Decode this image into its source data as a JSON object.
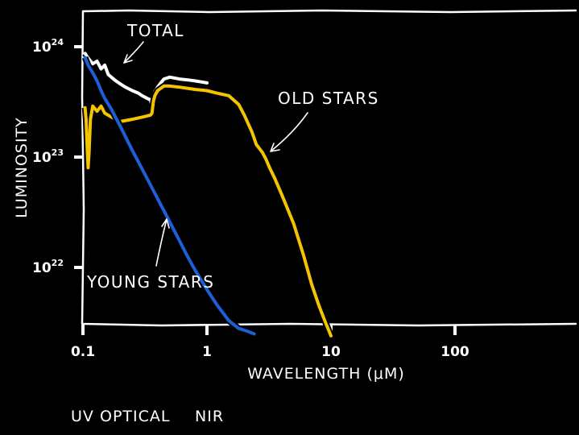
{
  "chart_data": {
    "type": "line",
    "xlabel": "WAVELENGTH (μM)",
    "ylabel": "LUMINOSITY",
    "xscale": "log",
    "yscale": "log",
    "xlim": [
      0.1,
      500
    ],
    "ylim": [
      2.4e+21,
      1.6e+24
    ],
    "xticks": [
      {
        "value": 0.1,
        "label": "0.1"
      },
      {
        "value": 1,
        "label": "1"
      },
      {
        "value": 10,
        "label": "10"
      },
      {
        "value": 100,
        "label": "100"
      }
    ],
    "yticks": [
      {
        "value": 1e+22,
        "base": "10",
        "exp": "22"
      },
      {
        "value": 1e+23,
        "base": "10",
        "exp": "23"
      },
      {
        "value": 1e+24,
        "base": "10",
        "exp": "24"
      }
    ],
    "series": [
      {
        "name": "TOTAL",
        "color": "#ffffff",
        "x": [
          0.104,
          0.11,
          0.12,
          0.13,
          0.14,
          0.15,
          0.16,
          0.18,
          0.2,
          0.22,
          0.25,
          0.28,
          0.3,
          0.33,
          0.35,
          0.36,
          0.37,
          0.38,
          0.39,
          0.4,
          0.43,
          0.45,
          0.5,
          0.55,
          0.6,
          0.7,
          0.8,
          0.9,
          1.0
        ],
        "y": [
          8.7e+23,
          7.9e+23,
          7e+23,
          7.4e+23,
          6.3e+23,
          6.8e+23,
          5.6e+23,
          5e+23,
          4.6e+23,
          4.3e+23,
          4e+23,
          3.8e+23,
          3.6e+23,
          3.4e+23,
          3.3e+23,
          2.9e+23,
          3.5e+23,
          3.9e+23,
          4.1e+23,
          4.3e+23,
          4.8e+23,
          5.1e+23,
          5.3e+23,
          5.2e+23,
          5.1e+23,
          5e+23,
          4.9e+23,
          4.8e+23,
          4.7e+23
        ]
      },
      {
        "name": "OLD STARS",
        "color": "#f4c400",
        "x": [
          0.104,
          0.106,
          0.108,
          0.11,
          0.112,
          0.115,
          0.12,
          0.13,
          0.14,
          0.15,
          0.17,
          0.2,
          0.25,
          0.3,
          0.35,
          0.36,
          0.37,
          0.38,
          0.4,
          0.45,
          0.5,
          0.6,
          0.8,
          1.0,
          1.2,
          1.5,
          1.8,
          2.0,
          2.3,
          2.5,
          2.8,
          3.0,
          3.2,
          3.5,
          4,
          5,
          6,
          7,
          8,
          9,
          10
        ],
        "y": [
          2.8e+23,
          2.2e+23,
          1.3e+23,
          8e+22,
          1.1e+23,
          2.2e+23,
          2.9e+23,
          2.6e+23,
          2.9e+23,
          2.5e+23,
          2.3e+23,
          2.1e+23,
          2.2e+23,
          2.3e+23,
          2.4e+23,
          2.5e+23,
          3.2e+23,
          3.6e+23,
          4e+23,
          4.4e+23,
          4.4e+23,
          4.3e+23,
          4.1e+23,
          4e+23,
          3.8e+23,
          3.6e+23,
          3e+23,
          2.4e+23,
          1.7e+23,
          1.3e+23,
          1.1e+23,
          9.5e+22,
          8e+22,
          6.5e+22,
          4.6e+22,
          2.5e+22,
          1.3e+22,
          7e+21,
          4.5e+21,
          3.2e+21,
          2.4e+21
        ]
      },
      {
        "name": "YOUNG STARS",
        "color": "#1e5ed8",
        "x": [
          0.104,
          0.11,
          0.12,
          0.13,
          0.14,
          0.15,
          0.17,
          0.2,
          0.25,
          0.3,
          0.35,
          0.4,
          0.5,
          0.6,
          0.7,
          0.8,
          1.0,
          1.2,
          1.5,
          1.8,
          2.0,
          2.2,
          2.4
        ],
        "y": [
          8e+23,
          6.8e+23,
          5.8e+23,
          4.9e+23,
          4e+23,
          3.4e+23,
          2.7e+23,
          1.9e+23,
          1.15e+23,
          7.8e+22,
          5.6e+22,
          4.2e+22,
          2.6e+22,
          1.75e+22,
          1.25e+22,
          9.5e+21,
          6.3e+21,
          4.6e+21,
          3.3e+21,
          2.8e+21,
          2.7e+21,
          2.6e+21,
          2.5e+21
        ]
      }
    ],
    "annotations": [
      {
        "text": "TOTAL",
        "target_series": "TOTAL"
      },
      {
        "text": "OLD STARS",
        "target_series": "OLD STARS"
      },
      {
        "text": "YOUNG STARS",
        "target_series": "YOUNG STARS"
      }
    ],
    "wavelength_bands": [
      "UV",
      "OPTICAL",
      "NIR"
    ],
    "grid": false,
    "legend": "none"
  }
}
